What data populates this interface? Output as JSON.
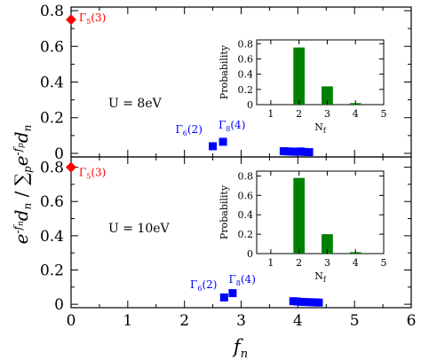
{
  "chart_data": {
    "type": "scatter",
    "figure": {
      "ylabel": "e^{-f_n} d_n / Σ_p e^{-f_p} d_p",
      "xlabel": "f_n"
    },
    "panels": [
      {
        "name": "top",
        "label": "U = 8eV",
        "xlim": [
          0,
          6
        ],
        "ylim": [
          -0.02,
          0.82
        ],
        "x_ticks": [
          0,
          1,
          2,
          3,
          4,
          5,
          6
        ],
        "x_tick_labels_shown": false,
        "y_ticks": [
          0,
          0.2,
          0.4,
          0.6,
          0.8
        ],
        "y_tick_labels": [
          "0",
          "0.2",
          "0.4",
          "0.6",
          "0.8"
        ],
        "series": [
          {
            "color": "#ff0000",
            "marker": "diamond",
            "points": [
              {
                "x": 0.0,
                "y": 0.75
              }
            ]
          },
          {
            "color": "#0000ff",
            "marker": "square",
            "points": [
              {
                "x": 2.5,
                "y": 0.04
              },
              {
                "x": 2.68,
                "y": 0.065
              },
              {
                "x": 3.75,
                "y": 0.012
              },
              {
                "x": 3.82,
                "y": 0.011
              },
              {
                "x": 3.9,
                "y": 0.01
              },
              {
                "x": 3.97,
                "y": 0.009
              },
              {
                "x": 4.05,
                "y": 0.011
              },
              {
                "x": 4.12,
                "y": 0.008
              },
              {
                "x": 4.2,
                "y": 0.007
              }
            ]
          }
        ],
        "annotations": [
          {
            "base": "Γ",
            "sub": "5",
            "rest": "(3)",
            "color": "#ff0000",
            "x": 0.14,
            "y": 0.74
          },
          {
            "base": "Γ",
            "sub": "6",
            "rest": "(2)",
            "color": "#0000ff",
            "x": 1.84,
            "y": 0.115
          },
          {
            "base": "Γ",
            "sub": "8",
            "rest": "(4)",
            "color": "#0000ff",
            "x": 2.6,
            "y": 0.14
          }
        ],
        "inset": {
          "type": "bar",
          "xlabel": "N_f",
          "ylabel": "Probability",
          "xlim": [
            0.5,
            5
          ],
          "ylim": [
            0,
            0.85
          ],
          "x_ticks": [
            1,
            2,
            3,
            4,
            5
          ],
          "y_ticks": [
            0,
            0.2,
            0.4,
            0.6,
            0.8
          ],
          "y_tick_labels": [
            "0",
            "0.2",
            "0.4",
            "0.6",
            "0.8"
          ],
          "color": "#008000",
          "categories": [
            2,
            3,
            4
          ],
          "values": [
            0.75,
            0.24,
            0.02
          ]
        }
      },
      {
        "name": "bottom",
        "label": "U = 10eV",
        "xlim": [
          0,
          6
        ],
        "ylim": [
          -0.02,
          0.86
        ],
        "x_ticks": [
          0,
          1,
          2,
          3,
          4,
          5,
          6
        ],
        "x_tick_labels_shown": true,
        "x_tick_labels": [
          "0",
          "1",
          "2",
          "3",
          "4",
          "5",
          "6"
        ],
        "y_ticks": [
          0,
          0.2,
          0.4,
          0.6,
          0.8
        ],
        "y_tick_labels": [
          "0",
          "0.2",
          "0.4",
          "0.6",
          "0.8"
        ],
        "series": [
          {
            "color": "#ff0000",
            "marker": "diamond",
            "points": [
              {
                "x": 0.0,
                "y": 0.8
              }
            ]
          },
          {
            "color": "#0000ff",
            "marker": "square",
            "points": [
              {
                "x": 2.7,
                "y": 0.04
              },
              {
                "x": 2.85,
                "y": 0.065
              },
              {
                "x": 3.92,
                "y": 0.018
              },
              {
                "x": 3.99,
                "y": 0.016
              },
              {
                "x": 4.06,
                "y": 0.014
              },
              {
                "x": 4.14,
                "y": 0.013
              },
              {
                "x": 4.22,
                "y": 0.012
              },
              {
                "x": 4.3,
                "y": 0.011
              },
              {
                "x": 4.37,
                "y": 0.01
              }
            ]
          }
        ],
        "annotations": [
          {
            "base": "Γ",
            "sub": "5",
            "rest": "(3)",
            "color": "#ff0000",
            "x": 0.14,
            "y": 0.75
          },
          {
            "base": "Γ",
            "sub": "6",
            "rest": "(2)",
            "color": "#0000ff",
            "x": 2.1,
            "y": 0.095
          },
          {
            "base": "Γ",
            "sub": "8",
            "rest": "(4)",
            "color": "#0000ff",
            "x": 2.78,
            "y": 0.125
          }
        ],
        "inset": {
          "type": "bar",
          "xlabel": "N_f",
          "ylabel": "Probability",
          "xlim": [
            0.5,
            5
          ],
          "ylim": [
            0,
            0.85
          ],
          "x_ticks": [
            1,
            2,
            3,
            4,
            5
          ],
          "y_ticks": [
            0,
            0.2,
            0.4,
            0.6,
            0.8
          ],
          "y_tick_labels": [
            "0",
            "0.2",
            "0.4",
            "0.6",
            "0.8"
          ],
          "color": "#008000",
          "categories": [
            2,
            3,
            4
          ],
          "values": [
            0.78,
            0.2,
            0.015
          ]
        }
      }
    ]
  }
}
